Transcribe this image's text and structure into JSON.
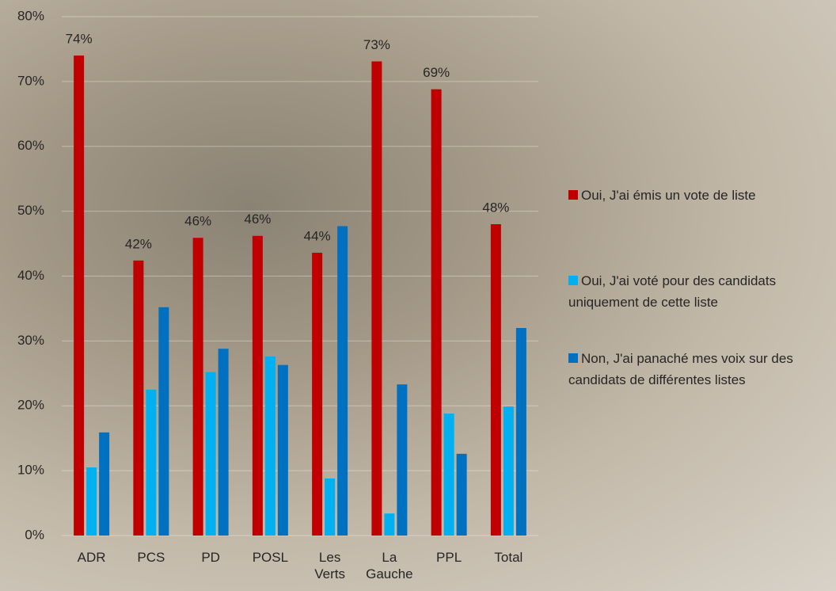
{
  "chart_data": {
    "type": "bar",
    "categories": [
      "ADR",
      "PCS",
      "PD",
      "POSL",
      "Les Verts",
      "La Gauche",
      "PPL",
      "Total"
    ],
    "series": [
      {
        "name": "Oui, J'ai émis un vote de liste",
        "color": "#c00000",
        "values": [
          74,
          42.4,
          45.9,
          46.2,
          43.6,
          73.1,
          68.8,
          48
        ],
        "value_labels": [
          "74%",
          "42%",
          "46%",
          "46%",
          "44%",
          "73%",
          "69%",
          "48%"
        ]
      },
      {
        "name": "Oui, J'ai voté pour des candidats uniquement de cette liste",
        "color": "#00b0f0",
        "values": [
          10.5,
          22.5,
          25.2,
          27.6,
          8.8,
          3.4,
          18.8,
          19.9
        ]
      },
      {
        "name": "Non, J'ai panaché mes voix sur des candidats de différentes listes",
        "color": "#0070c0",
        "values": [
          15.9,
          35.2,
          28.8,
          26.3,
          47.7,
          23.3,
          12.6,
          32
        ]
      }
    ],
    "ylim": [
      0,
      80
    ],
    "yticks": [
      {
        "value": 0,
        "label": "0%"
      },
      {
        "value": 10,
        "label": "10%"
      },
      {
        "value": 20,
        "label": "20%"
      },
      {
        "value": 30,
        "label": "30%"
      },
      {
        "value": 40,
        "label": "40%"
      },
      {
        "value": 50,
        "label": "50%"
      },
      {
        "value": 60,
        "label": "60%"
      },
      {
        "value": 70,
        "label": "70%"
      },
      {
        "value": 80,
        "label": "80%"
      }
    ],
    "grid": true,
    "legend": "right"
  }
}
